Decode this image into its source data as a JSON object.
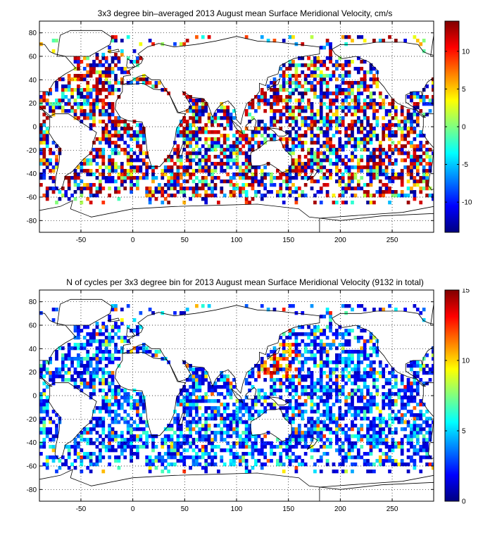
{
  "panels": [
    {
      "title": "3x3 degree bin–averaged 2013 August mean Surface Meridional Velocity, cm/s",
      "colorbar": {
        "ticks": [
          -10,
          -5,
          0,
          5,
          10
        ],
        "min": -14,
        "max": 14
      }
    },
    {
      "title": "N of cycles per 3x3 degree bin for 2013 August mean Surface Meridional Velocity (9132 in total)",
      "colorbar": {
        "ticks": [
          0,
          5,
          10,
          15
        ],
        "min": 0,
        "max": 15
      }
    }
  ],
  "chart_data": [
    {
      "type": "heatmap",
      "title": "3x3 degree bin–averaged 2013 August mean Surface Meridional Velocity, cm/s",
      "xlim": [
        -90,
        290
      ],
      "ylim": [
        -90,
        90
      ],
      "xticks": [
        -50,
        0,
        50,
        100,
        150,
        200,
        250
      ],
      "yticks": [
        -80,
        -60,
        -40,
        -20,
        0,
        20,
        40,
        60,
        80
      ],
      "grid": true,
      "colormap": "jet",
      "bin_size_deg": 3,
      "color_range": [
        -14,
        14
      ]
    },
    {
      "type": "heatmap",
      "title": "N of cycles per 3x3 degree bin for 2013 August mean Surface Meridional Velocity (9132 in total)",
      "xlim": [
        -90,
        290
      ],
      "ylim": [
        -90,
        90
      ],
      "xticks": [
        -50,
        0,
        50,
        100,
        150,
        200,
        250
      ],
      "yticks": [
        -80,
        -60,
        -40,
        -20,
        0,
        20,
        40,
        60,
        80
      ],
      "grid": true,
      "colormap": "jet",
      "bin_size_deg": 3,
      "color_range": [
        0,
        15
      ],
      "total_count": 9132
    }
  ]
}
